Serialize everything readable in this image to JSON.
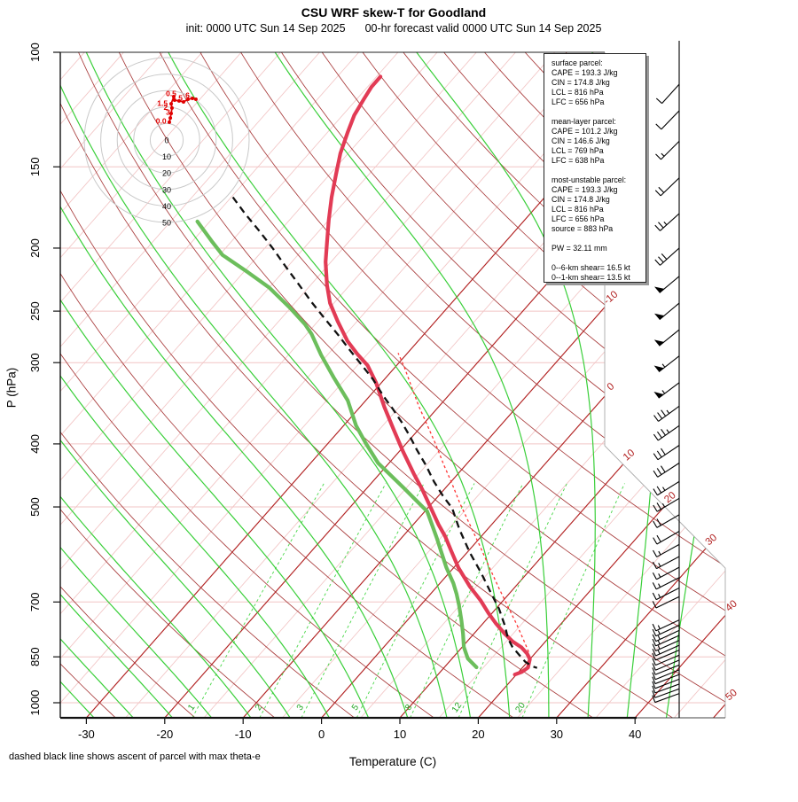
{
  "title": "CSU WRF skew-T for Goodland",
  "subtitle_left": "init: 0000 UTC Sun 14 Sep 2025",
  "subtitle_right": "00-hr forecast valid 0000 UTC Sun 14 Sep 2025",
  "footnote": "dashed black line shows ascent of parcel with max theta-e",
  "info_box": {
    "lines": [
      "surface parcel:",
      "CAPE = 193.3 J/kg",
      "CIN = 174.8 J/kg",
      "LCL = 816 hPa",
      "LFC = 656 hPa",
      "",
      "mean-layer parcel:",
      "CAPE = 101.2 J/kg",
      "CIN = 146.6 J/kg",
      "LCL = 769 hPa",
      "LFC = 638 hPa",
      "",
      "most-unstable parcel:",
      "CAPE = 193.3 J/kg",
      "CIN = 174.8 J/kg",
      "LCL = 816 hPa",
      "LFC = 656 hPa",
      "source = 883 hPa",
      "",
      "PW =  32.11 mm",
      "",
      "0--6-km shear= 16.5 kt",
      "0--1-km shear= 13.5 kt"
    ]
  },
  "chart_data": {
    "type": "skew-t log-p sounding",
    "axes": {
      "x_label": "Temperature (C)",
      "y_label": "P (hPa)",
      "x_ticks": [
        -30,
        -20,
        -10,
        0,
        10,
        20,
        30,
        40
      ],
      "y_ticks": [
        100,
        150,
        200,
        250,
        300,
        400,
        500,
        700,
        850,
        1000
      ],
      "x_range_c": [
        -33,
        51
      ],
      "p_range_hpa": [
        100,
        1055
      ]
    },
    "grid": {
      "isobars": [
        150,
        200,
        250,
        300,
        400,
        500,
        700,
        850,
        1000
      ],
      "isotherm_step_c": 5,
      "dark_isotherms": [
        -30,
        -20,
        -10,
        0,
        10,
        20,
        30,
        40,
        50
      ],
      "isotherm_edge_labels": [
        -10,
        0,
        10,
        20,
        30,
        40,
        50
      ],
      "dry_adiabat_thetas": [
        -30,
        -20,
        -10,
        0,
        10,
        20,
        30,
        40,
        50,
        60,
        70,
        80,
        90,
        100,
        110,
        120,
        130,
        140,
        150,
        160,
        170,
        180
      ],
      "moist_adiabat_start_temps": [
        -29,
        -24,
        -19,
        -14,
        -9,
        -4,
        1,
        6,
        11,
        16,
        19,
        24,
        29,
        34,
        39,
        44
      ],
      "mixing_ratio_lines": [
        1,
        2,
        3,
        5,
        8,
        12,
        20
      ],
      "colors": {
        "isotherm_dark": "#B22222",
        "isotherm_light": "#F2C5C5",
        "isobar": "#F2C5C5",
        "dry_adiabat": "#A33030",
        "moist_adiabat": "#2ECC2E",
        "mixing_ratio": "#4FD84F",
        "mixing_label": "#1FA51F",
        "temperature": "#E23B55",
        "dewpoint": "#6CBE5C",
        "parcel_dashed": "#111111",
        "parcel_surface": "#FF3333",
        "hodograph_trace": "#E00000",
        "boundary": "#AAAAAA"
      }
    },
    "profiles": {
      "temperature_p_t": [
        [
          109,
          -64.5
        ],
        [
          113,
          -64.5
        ],
        [
          118,
          -64.1
        ],
        [
          125,
          -63.5
        ],
        [
          133,
          -62.4
        ],
        [
          143,
          -61.0
        ],
        [
          154,
          -59.2
        ],
        [
          167,
          -57.2
        ],
        [
          181,
          -55.0
        ],
        [
          196,
          -52.7
        ],
        [
          210,
          -50.7
        ],
        [
          228,
          -47.9
        ],
        [
          243,
          -45.5
        ],
        [
          259,
          -42.5
        ],
        [
          278,
          -39.0
        ],
        [
          291,
          -36.3
        ],
        [
          303,
          -33.7
        ],
        [
          322,
          -30.7
        ],
        [
          351,
          -26.9
        ],
        [
          380,
          -23.2
        ],
        [
          411,
          -19.5
        ],
        [
          444,
          -15.7
        ],
        [
          470,
          -12.8
        ],
        [
          503,
          -9.5
        ],
        [
          532,
          -6.8
        ],
        [
          555,
          -4.6
        ],
        [
          583,
          -2.3
        ],
        [
          620,
          0.6
        ],
        [
          663,
          4.2
        ],
        [
          696,
          7.1
        ],
        [
          729,
          9.6
        ],
        [
          756,
          11.7
        ],
        [
          783,
          13.9
        ],
        [
          805,
          15.8
        ],
        [
          822,
          17.6
        ],
        [
          840,
          19.0
        ],
        [
          857,
          20.0
        ],
        [
          883,
          20.7
        ],
        [
          897,
          20.4
        ],
        [
          905,
          19.8
        ]
      ],
      "dewpoint_p_t": [
        [
          182,
          -71.6
        ],
        [
          195,
          -67.6
        ],
        [
          205,
          -64.6
        ],
        [
          218,
          -59.4
        ],
        [
          230,
          -55.0
        ],
        [
          247,
          -50.1
        ],
        [
          262,
          -46.3
        ],
        [
          271,
          -44.4
        ],
        [
          292,
          -40.8
        ],
        [
          316,
          -36.7
        ],
        [
          343,
          -32.3
        ],
        [
          375,
          -28.4
        ],
        [
          399,
          -25.2
        ],
        [
          428,
          -21.4
        ],
        [
          467,
          -15.4
        ],
        [
          508,
          -9.7
        ],
        [
          558,
          -5.5
        ],
        [
          587,
          -3.3
        ],
        [
          619,
          -1.0
        ],
        [
          655,
          1.7
        ],
        [
          680,
          3.3
        ],
        [
          708,
          4.9
        ],
        [
          747,
          6.9
        ],
        [
          783,
          8.6
        ],
        [
          821,
          10.2
        ],
        [
          855,
          12.0
        ],
        [
          882,
          14.1
        ]
      ],
      "parcel_max_thetae_p_t": [
        [
          167,
          -69.8
        ],
        [
          177,
          -66.4
        ],
        [
          188,
          -62.7
        ],
        [
          200,
          -59.0
        ],
        [
          213,
          -55.4
        ],
        [
          227,
          -51.7
        ],
        [
          242,
          -48.0
        ],
        [
          256,
          -44.6
        ],
        [
          271,
          -41.1
        ],
        [
          286,
          -37.9
        ],
        [
          301,
          -34.8
        ],
        [
          318,
          -31.5
        ],
        [
          338,
          -28.2
        ],
        [
          354,
          -25.5
        ],
        [
          371,
          -22.9
        ],
        [
          389,
          -20.4
        ],
        [
          408,
          -18.0
        ],
        [
          431,
          -15.1
        ],
        [
          457,
          -12.2
        ],
        [
          482,
          -9.3
        ],
        [
          502,
          -6.9
        ],
        [
          541,
          -3.6
        ],
        [
          587,
          0.3
        ],
        [
          633,
          4.2
        ],
        [
          674,
          7.3
        ],
        [
          717,
          10.4
        ],
        [
          764,
          13.2
        ],
        [
          795,
          14.8
        ],
        [
          821,
          16.4
        ],
        [
          842,
          18.0
        ],
        [
          865,
          19.7
        ],
        [
          879,
          21.1
        ],
        [
          884,
          21.9
        ]
      ],
      "parcel_surface_p_t": [
        [
          882,
          20.5
        ],
        [
          855,
          19.9
        ],
        [
          833,
          18.9
        ],
        [
          800,
          17.0
        ],
        [
          756,
          14.3
        ],
        [
          713,
          11.4
        ],
        [
          667,
          8.1
        ],
        [
          619,
          4.5
        ],
        [
          574,
          0.9
        ],
        [
          532,
          -2.8
        ],
        [
          494,
          -6.4
        ],
        [
          459,
          -9.8
        ],
        [
          430,
          -12.9
        ],
        [
          401,
          -16.1
        ],
        [
          375,
          -19.3
        ],
        [
          350,
          -22.6
        ],
        [
          326,
          -25.8
        ],
        [
          305,
          -28.8
        ],
        [
          290,
          -31.2
        ]
      ]
    },
    "winds_p_kt_dir": [
      [
        112,
        10,
        222
      ],
      [
        123,
        10,
        224
      ],
      [
        137,
        15,
        225
      ],
      [
        156,
        20,
        226
      ],
      [
        177,
        25,
        228
      ],
      [
        200,
        30,
        228
      ],
      [
        221,
        50,
        230
      ],
      [
        243,
        50,
        230
      ],
      [
        267,
        50,
        231
      ],
      [
        293,
        55,
        232
      ],
      [
        322,
        55,
        233
      ],
      [
        350,
        35,
        234
      ],
      [
        375,
        35,
        235
      ],
      [
        402,
        30,
        236
      ],
      [
        428,
        30,
        237
      ],
      [
        457,
        25,
        238
      ],
      [
        485,
        25,
        239
      ],
      [
        514,
        20,
        240
      ],
      [
        545,
        20,
        240
      ],
      [
        571,
        15,
        241
      ],
      [
        596,
        15,
        242
      ],
      [
        619,
        15,
        242
      ],
      [
        642,
        15,
        243
      ],
      [
        666,
        15,
        243
      ],
      [
        687,
        12,
        244
      ],
      [
        746,
        15,
        245
      ],
      [
        760,
        15,
        245
      ],
      [
        774,
        15,
        245
      ],
      [
        788,
        15,
        246
      ],
      [
        802,
        15,
        246
      ],
      [
        816,
        15,
        246
      ],
      [
        830,
        12,
        247
      ],
      [
        845,
        12,
        247
      ],
      [
        860,
        10,
        247
      ],
      [
        875,
        10,
        248
      ],
      [
        890,
        10,
        248
      ],
      [
        905,
        10,
        249
      ],
      [
        920,
        10,
        249
      ],
      [
        936,
        10,
        250
      ],
      [
        952,
        10,
        250
      ],
      [
        968,
        10,
        250
      ]
    ],
    "hodograph": {
      "ring_labels": [
        "0",
        "10",
        "20",
        "30",
        "40",
        "50"
      ],
      "ring_step_kt": 10,
      "trace_u_v_kt": [
        [
          1.6,
          10.8
        ],
        [
          2.2,
          13.4
        ],
        [
          2.7,
          16.1
        ],
        [
          3.2,
          19.4
        ],
        [
          2.7,
          22.0
        ],
        [
          4.3,
          26.3
        ],
        [
          4.8,
          24.2
        ],
        [
          7.5,
          23.7
        ],
        [
          10.2,
          23.1
        ],
        [
          12.9,
          24.7
        ],
        [
          15.6,
          25.3
        ],
        [
          17.7,
          24.7
        ]
      ],
      "height_labels": [
        {
          "label": "0.5",
          "u": 2.7,
          "v": 28.2
        },
        {
          "label": "1.5",
          "u": -2.6,
          "v": 22.2
        },
        {
          "label": "2",
          "u": -0.6,
          "v": 19.8
        },
        {
          "label": "3",
          "u": 0.8,
          "v": 17.0
        },
        {
          "label": "0.0",
          "u": -3.4,
          "v": 11.6
        },
        {
          "label": "5",
          "u": 8.4,
          "v": 25.6
        },
        {
          "label": "6",
          "u": 12.6,
          "v": 27.2
        }
      ]
    }
  }
}
